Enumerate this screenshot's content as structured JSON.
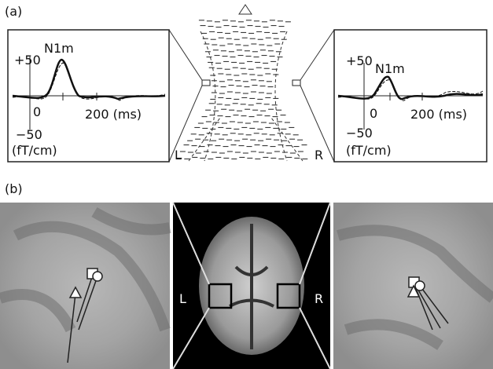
{
  "panel_a": {
    "label": "(a)",
    "left_plot": {
      "peak_label": "N1m",
      "y_top": "+50",
      "x_zero": "0",
      "x_200": "200 (ms)",
      "y_bottom": "−50",
      "unit": "(fT/cm)"
    },
    "right_plot": {
      "peak_label": "N1m",
      "y_top": "+50",
      "x_zero": "0",
      "x_200": "200 (ms)",
      "y_bottom": "−50",
      "unit": "(fT/cm)"
    },
    "left_hemisphere": "L",
    "right_hemisphere": "R"
  },
  "panel_b": {
    "label": "(b)",
    "left_hemisphere": "L",
    "right_hemisphere": "R"
  }
}
